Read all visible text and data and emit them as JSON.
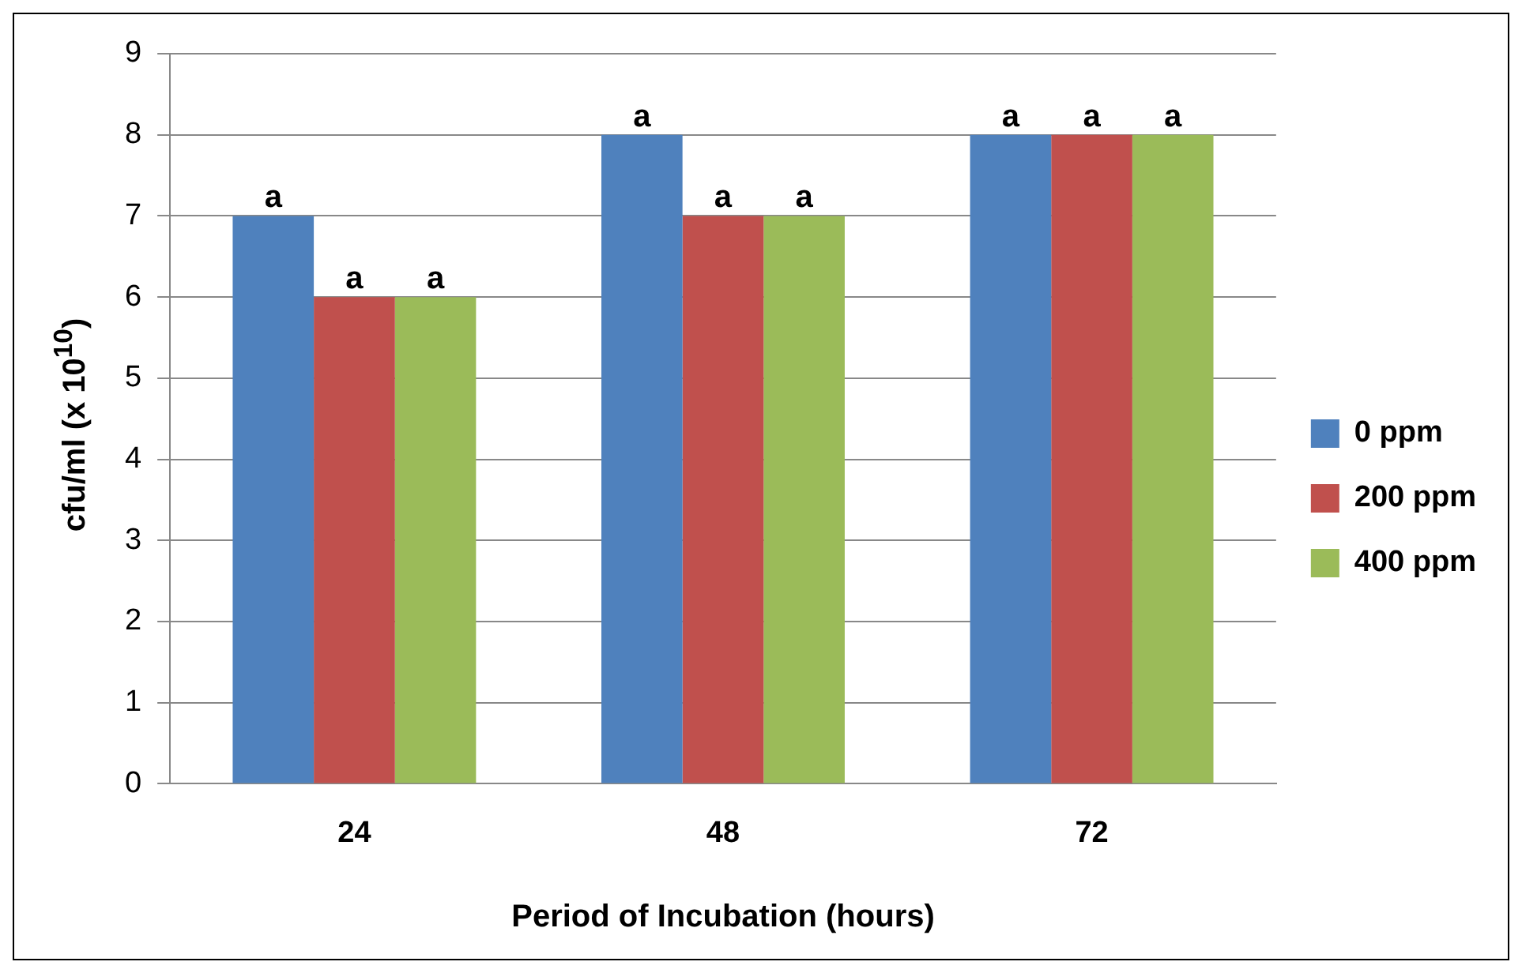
{
  "chart_data": {
    "type": "bar",
    "xlabel": "Period of Incubation (hours)",
    "ylabel": "cfu/ml (x 10$^{10}$)",
    "categories": [
      "24",
      "48",
      "72"
    ],
    "series": [
      {
        "name": "0 ppm",
        "color": "#4f81bd",
        "values": [
          7,
          8,
          8
        ],
        "value_labels": [
          "a",
          "a",
          "a"
        ]
      },
      {
        "name": "200 ppm",
        "color": "#c0504d",
        "values": [
          6,
          7,
          8
        ],
        "value_labels": [
          "a",
          "a",
          "a"
        ]
      },
      {
        "name": "400 ppm",
        "color": "#9bbb59",
        "values": [
          6,
          7,
          8
        ],
        "value_labels": [
          "a",
          "a",
          "a"
        ]
      }
    ],
    "ylim": [
      0,
      9
    ],
    "yticks": [
      0,
      1,
      2,
      3,
      4,
      5,
      6,
      7,
      8,
      9
    ],
    "grid": "y",
    "legend": "right"
  }
}
